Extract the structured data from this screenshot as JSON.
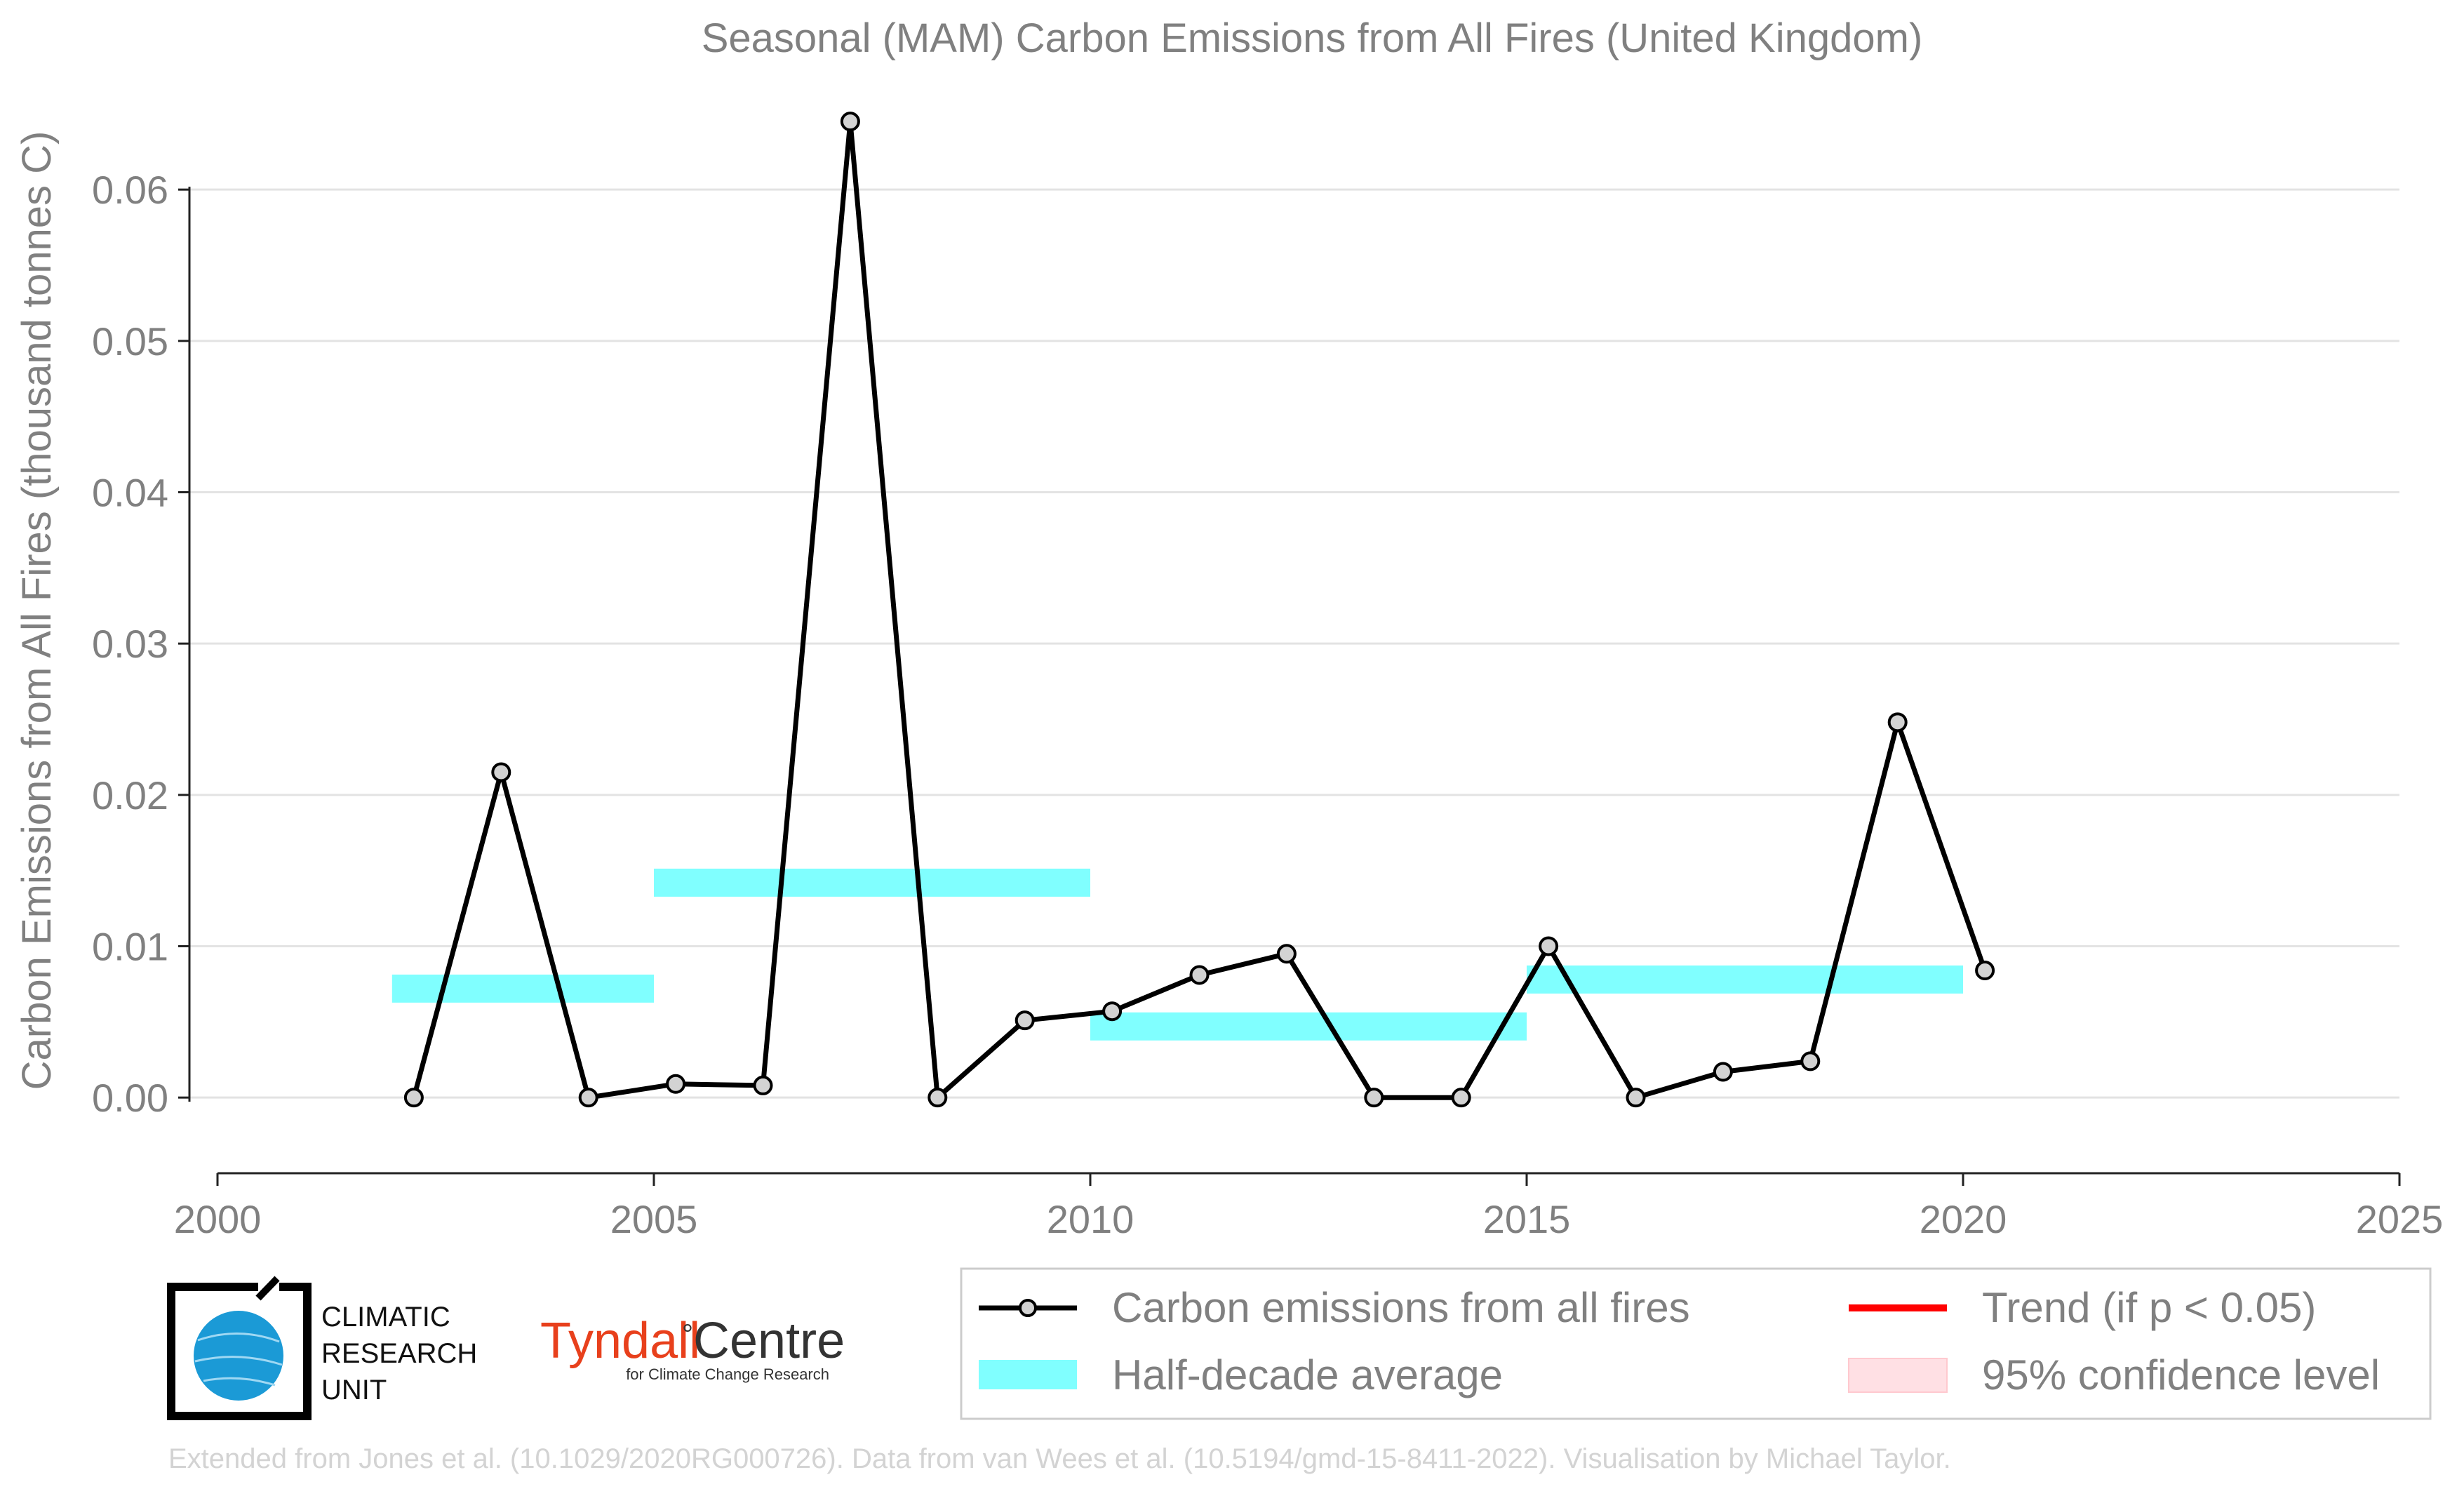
{
  "chart_data": {
    "type": "line",
    "title": "Seasonal (MAM) Carbon Emissions from All Fires (United Kingdom)",
    "xlabel": "",
    "ylabel": "Carbon Emissions from All Fires (thousand tonnes C)",
    "xlim": [
      2000,
      2025
    ],
    "ylim": [
      -0.005,
      0.0665
    ],
    "x_ticks": [
      "2000",
      "2005",
      "2010",
      "2015",
      "2020",
      "2025"
    ],
    "y_ticks": [
      "0.00",
      "0.01",
      "0.02",
      "0.03",
      "0.04",
      "0.05",
      "0.06"
    ],
    "grid": "horizontal",
    "series": [
      {
        "name": "Carbon emissions from all fires",
        "color": "#000000",
        "marker_fill": "#d3d3d3",
        "x": [
          2002.25,
          2003.25,
          2004.25,
          2005.25,
          2006.25,
          2007.25,
          2008.25,
          2009.25,
          2010.25,
          2011.25,
          2012.25,
          2013.25,
          2014.25,
          2015.25,
          2016.25,
          2017.25,
          2018.25,
          2019.25,
          2020.25
        ],
        "y": [
          0.0,
          0.0215,
          0.0,
          0.0009,
          0.0008,
          0.0645,
          0.0,
          0.0051,
          0.0057,
          0.0081,
          0.0095,
          0.0,
          0.0,
          0.01,
          0.0,
          0.0017,
          0.0024,
          0.0248,
          0.0084
        ]
      }
    ],
    "half_decade_average": {
      "name": "Half-decade average",
      "color": "#80ffff",
      "periods": [
        {
          "start": 2002,
          "end": 2005,
          "value": 0.0072
        },
        {
          "start": 2005,
          "end": 2010,
          "value": 0.0142
        },
        {
          "start": 2010,
          "end": 2015,
          "value": 0.0047
        },
        {
          "start": 2015,
          "end": 2020,
          "value": 0.0078
        }
      ]
    },
    "legend": {
      "placement": "bottom-right",
      "entries": [
        {
          "label": "Carbon emissions from all fires",
          "kind": "line-marker",
          "color": "#000000"
        },
        {
          "label": "Trend (if p < 0.05)",
          "kind": "line",
          "color": "#ff0000"
        },
        {
          "label": "Half-decade average",
          "kind": "band",
          "color": "#80ffff"
        },
        {
          "label": "95% confidence level",
          "kind": "patch",
          "color": "#ffe0e4"
        }
      ]
    }
  },
  "logos": {
    "cru": {
      "line1": "CLIMATIC",
      "line2": "RESEARCH",
      "line3": "UNIT"
    },
    "tyndall": {
      "main": "Tyndall",
      "degree": "°",
      "centre": "Centre",
      "sub": "for Climate Change Research"
    }
  },
  "credit": "Extended from Jones et al. (10.1029/2020RG000726). Data from van Wees et al. (10.5194/gmd-15-8411-2022). Visualisation by Michael Taylor."
}
